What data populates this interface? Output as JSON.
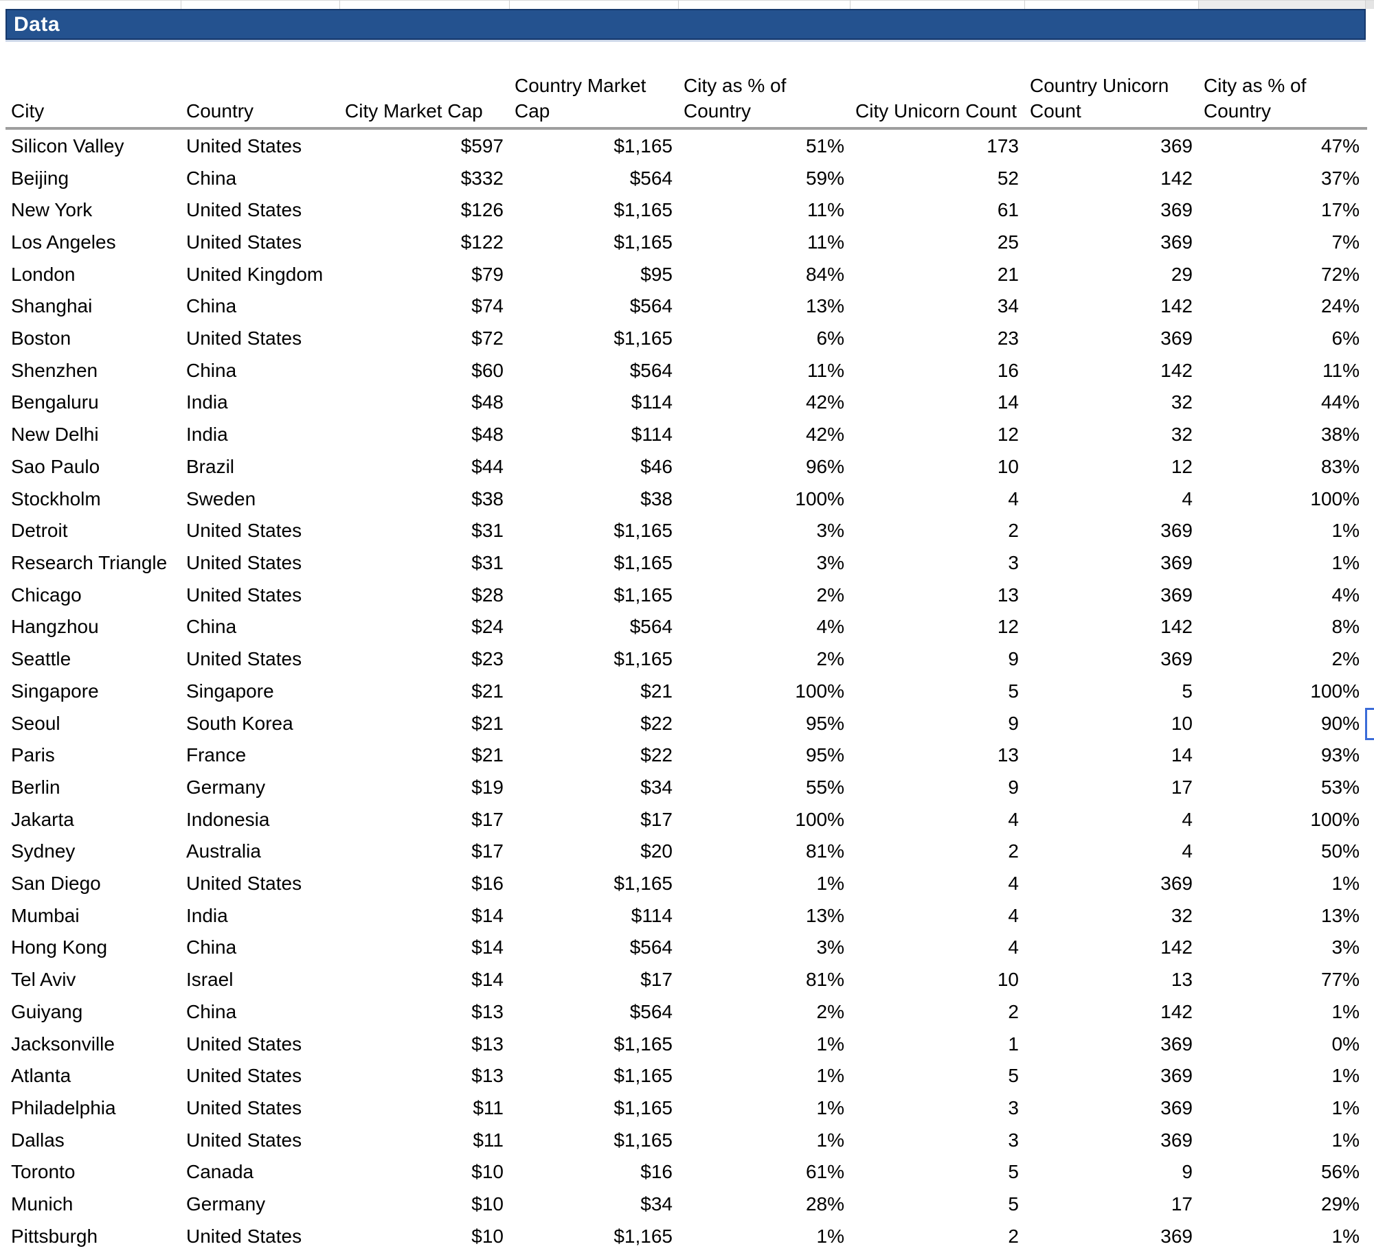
{
  "sheet": {
    "section_title": "Data",
    "colors": {
      "band_background": "#24528F",
      "band_border": "#16386B",
      "header_underline": "#9E9E9E",
      "gridline": "#D9D9D9",
      "selection_border": "#3A6BD8"
    },
    "table": {
      "headers": [
        "City",
        "Country",
        "City Market Cap",
        "Country Market Cap",
        "City as % of Country",
        "City Unicorn Count",
        "Country Unicorn Count",
        "City as % of Country"
      ],
      "rows": [
        [
          "Silicon Valley",
          "United States",
          "$597",
          "$1,165",
          "51%",
          "173",
          "369",
          "47%"
        ],
        [
          "Beijing",
          "China",
          "$332",
          "$564",
          "59%",
          "52",
          "142",
          "37%"
        ],
        [
          "New York",
          "United States",
          "$126",
          "$1,165",
          "11%",
          "61",
          "369",
          "17%"
        ],
        [
          "Los Angeles",
          "United States",
          "$122",
          "$1,165",
          "11%",
          "25",
          "369",
          "7%"
        ],
        [
          "London",
          "United Kingdom",
          "$79",
          "$95",
          "84%",
          "21",
          "29",
          "72%"
        ],
        [
          "Shanghai",
          "China",
          "$74",
          "$564",
          "13%",
          "34",
          "142",
          "24%"
        ],
        [
          "Boston",
          "United States",
          "$72",
          "$1,165",
          "6%",
          "23",
          "369",
          "6%"
        ],
        [
          "Shenzhen",
          "China",
          "$60",
          "$564",
          "11%",
          "16",
          "142",
          "11%"
        ],
        [
          "Bengaluru",
          "India",
          "$48",
          "$114",
          "42%",
          "14",
          "32",
          "44%"
        ],
        [
          "New Delhi",
          "India",
          "$48",
          "$114",
          "42%",
          "12",
          "32",
          "38%"
        ],
        [
          "Sao Paulo",
          "Brazil",
          "$44",
          "$46",
          "96%",
          "10",
          "12",
          "83%"
        ],
        [
          "Stockholm",
          "Sweden",
          "$38",
          "$38",
          "100%",
          "4",
          "4",
          "100%"
        ],
        [
          "Detroit",
          "United States",
          "$31",
          "$1,165",
          "3%",
          "2",
          "369",
          "1%"
        ],
        [
          "Research Triangle",
          "United States",
          "$31",
          "$1,165",
          "3%",
          "3",
          "369",
          "1%"
        ],
        [
          "Chicago",
          "United States",
          "$28",
          "$1,165",
          "2%",
          "13",
          "369",
          "4%"
        ],
        [
          "Hangzhou",
          "China",
          "$24",
          "$564",
          "4%",
          "12",
          "142",
          "8%"
        ],
        [
          "Seattle",
          "United States",
          "$23",
          "$1,165",
          "2%",
          "9",
          "369",
          "2%"
        ],
        [
          "Singapore",
          "Singapore",
          "$21",
          "$21",
          "100%",
          "5",
          "5",
          "100%"
        ],
        [
          "Seoul",
          "South Korea",
          "$21",
          "$22",
          "95%",
          "9",
          "10",
          "90%"
        ],
        [
          "Paris",
          "France",
          "$21",
          "$22",
          "95%",
          "13",
          "14",
          "93%"
        ],
        [
          "Berlin",
          "Germany",
          "$19",
          "$34",
          "55%",
          "9",
          "17",
          "53%"
        ],
        [
          "Jakarta",
          "Indonesia",
          "$17",
          "$17",
          "100%",
          "4",
          "4",
          "100%"
        ],
        [
          "Sydney",
          "Australia",
          "$17",
          "$20",
          "81%",
          "2",
          "4",
          "50%"
        ],
        [
          "San Diego",
          "United States",
          "$16",
          "$1,165",
          "1%",
          "4",
          "369",
          "1%"
        ],
        [
          "Mumbai",
          "India",
          "$14",
          "$114",
          "13%",
          "4",
          "32",
          "13%"
        ],
        [
          "Hong Kong",
          "China",
          "$14",
          "$564",
          "3%",
          "4",
          "142",
          "3%"
        ],
        [
          "Tel Aviv",
          "Israel",
          "$14",
          "$17",
          "81%",
          "10",
          "13",
          "77%"
        ],
        [
          "Guiyang",
          "China",
          "$13",
          "$564",
          "2%",
          "2",
          "142",
          "1%"
        ],
        [
          "Jacksonville",
          "United States",
          "$13",
          "$1,165",
          "1%",
          "1",
          "369",
          "0%"
        ],
        [
          "Atlanta",
          "United States",
          "$13",
          "$1,165",
          "1%",
          "5",
          "369",
          "1%"
        ],
        [
          "Philadelphia",
          "United States",
          "$11",
          "$1,165",
          "1%",
          "3",
          "369",
          "1%"
        ],
        [
          "Dallas",
          "United States",
          "$11",
          "$1,165",
          "1%",
          "3",
          "369",
          "1%"
        ],
        [
          "Toronto",
          "Canada",
          "$10",
          "$16",
          "61%",
          "5",
          "9",
          "56%"
        ],
        [
          "Munich",
          "Germany",
          "$10",
          "$34",
          "28%",
          "5",
          "17",
          "29%"
        ],
        [
          "Pittsburgh",
          "United States",
          "$10",
          "$1,165",
          "1%",
          "2",
          "369",
          "1%"
        ]
      ]
    }
  }
}
